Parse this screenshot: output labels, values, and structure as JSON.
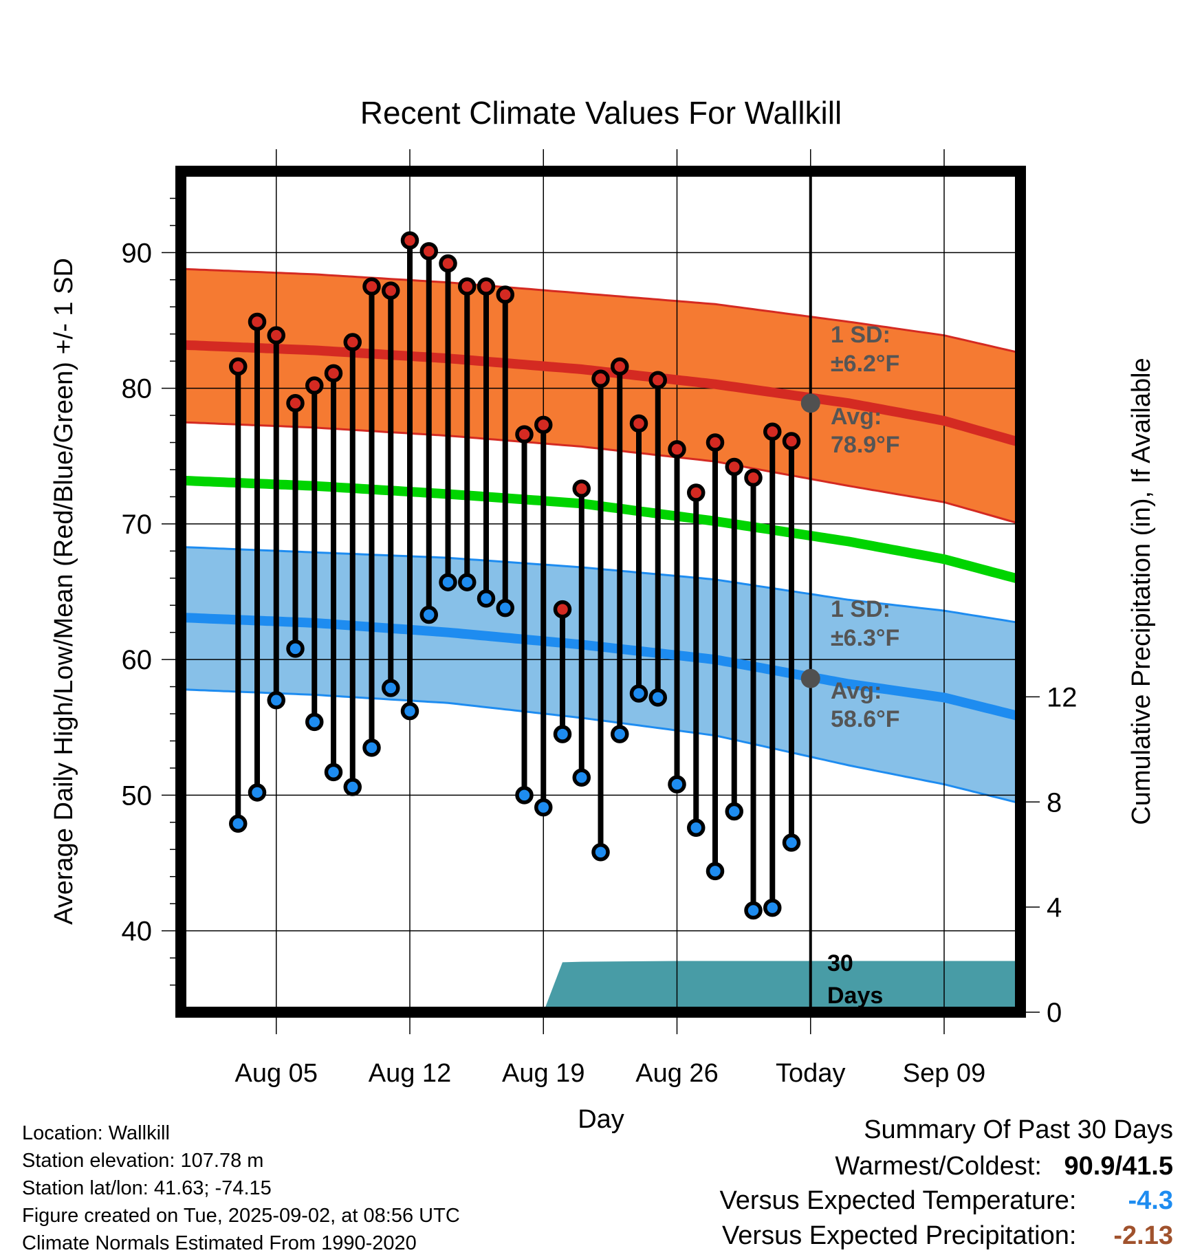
{
  "chart_data": {
    "type": "line",
    "title": "Recent Climate Values For Wallkill",
    "xlabel": "Day",
    "ylabel": "Average Daily High/Low/Mean (Red/Blue/Green) +/- 1 SD",
    "y2label": "Cumulative Precipitation (in), If Available",
    "ylim": [
      34,
      96
    ],
    "y2lim": [
      0,
      32
    ],
    "yticks": [
      40,
      50,
      60,
      70,
      80,
      90
    ],
    "y2ticks": [
      0,
      4,
      8,
      12
    ],
    "xlim": [
      "2025-07-31",
      "2025-09-13"
    ],
    "xticks": [
      "Aug 05",
      "Aug 12",
      "Aug 19",
      "Aug 26",
      "Today",
      "Sep 09"
    ],
    "today": "2025-09-02",
    "grid": true,
    "daily": {
      "dates": [
        "2025-08-03",
        "2025-08-04",
        "2025-08-05",
        "2025-08-06",
        "2025-08-07",
        "2025-08-08",
        "2025-08-09",
        "2025-08-10",
        "2025-08-11",
        "2025-08-12",
        "2025-08-13",
        "2025-08-14",
        "2025-08-15",
        "2025-08-16",
        "2025-08-17",
        "2025-08-18",
        "2025-08-19",
        "2025-08-20",
        "2025-08-21",
        "2025-08-22",
        "2025-08-23",
        "2025-08-24",
        "2025-08-25",
        "2025-08-26",
        "2025-08-27",
        "2025-08-28",
        "2025-08-29",
        "2025-08-30",
        "2025-08-31",
        "2025-09-01"
      ],
      "high": [
        81.6,
        84.9,
        83.9,
        78.9,
        80.2,
        81.1,
        83.4,
        87.5,
        87.2,
        90.9,
        90.1,
        89.2,
        87.5,
        87.5,
        86.9,
        76.6,
        77.3,
        63.7,
        72.6,
        80.7,
        81.6,
        77.4,
        80.6,
        75.5,
        72.3,
        76.0,
        74.2,
        73.4,
        76.8,
        76.1
      ],
      "low": [
        47.9,
        50.2,
        57.0,
        60.8,
        55.4,
        51.7,
        50.6,
        53.5,
        57.9,
        56.2,
        63.3,
        65.7,
        65.7,
        64.5,
        63.8,
        50.0,
        49.1,
        54.5,
        51.3,
        45.8,
        54.5,
        57.5,
        57.2,
        50.8,
        47.6,
        44.4,
        48.8,
        41.5,
        41.7,
        46.5
      ]
    },
    "normals": {
      "dates": [
        "2025-07-31",
        "2025-08-07",
        "2025-08-14",
        "2025-08-21",
        "2025-08-28",
        "2025-09-04",
        "2025-09-09",
        "2025-09-13"
      ],
      "high_avg": [
        83.2,
        82.8,
        82.2,
        81.4,
        80.3,
        78.9,
        77.6,
        76.0
      ],
      "high_upper": [
        88.8,
        88.4,
        87.8,
        87.0,
        86.2,
        84.9,
        83.9,
        82.6
      ],
      "high_lower": [
        77.5,
        77.1,
        76.5,
        75.7,
        74.6,
        72.8,
        71.6,
        70.0
      ],
      "mean_avg": [
        73.2,
        72.8,
        72.2,
        71.5,
        70.2,
        68.7,
        67.4,
        65.9
      ],
      "low_avg": [
        63.1,
        62.7,
        62.0,
        61.1,
        60.0,
        58.2,
        57.2,
        55.8
      ],
      "low_upper": [
        68.3,
        67.9,
        67.5,
        66.8,
        65.9,
        64.4,
        63.6,
        62.7
      ],
      "low_lower": [
        57.8,
        57.4,
        56.8,
        55.7,
        54.4,
        52.2,
        50.8,
        49.4
      ]
    },
    "precip": {
      "dates": [
        "2025-08-19",
        "2025-08-20",
        "2025-08-21",
        "2025-08-26",
        "2025-09-02",
        "2025-09-13"
      ],
      "cumulative": [
        0.0,
        1.9,
        1.92,
        1.95,
        1.95,
        1.95
      ]
    },
    "annotations": {
      "high_sd_label": "1 SD:",
      "high_sd_value": "±6.2°F",
      "high_avg_label": "Avg:",
      "high_avg_value": "78.9°F",
      "high_avg_today": 78.9,
      "low_sd_label": "1 SD:",
      "low_sd_value": "±6.3°F",
      "low_avg_label": "Avg:",
      "low_avg_value": "58.6°F",
      "low_avg_today": 58.6,
      "days_label_1": "30",
      "days_label_2": "Days"
    },
    "colors": {
      "high_band": "#f57a32",
      "high_line": "#d42a22",
      "mean_line": "#00d400",
      "low_band": "#87c0e8",
      "low_line": "#1e8cf0",
      "precip_fill": "#489ca6",
      "high_marker": "#d42a22",
      "low_marker": "#1e8cf0",
      "avg_marker": "#505050",
      "annotation_text": "#555555"
    }
  },
  "info": {
    "location": "Location: Wallkill",
    "elevation": "Station elevation: 107.78 m",
    "latlon": "Station lat/lon: 41.63; -74.15",
    "created": "Figure created on Tue, 2025-09-02, at 08:56 UTC",
    "normals": "Climate Normals Estimated From 1990-2020"
  },
  "summary": {
    "title": "Summary Of Past 30 Days",
    "warm_cold_label": "Warmest/Coldest:",
    "warm_cold_value": "90.9/41.5",
    "temp_label": "Versus Expected Temperature:",
    "temp_value": "-4.3",
    "temp_color": "#1e8cf0",
    "precip_label": "Versus Expected Precipitation:",
    "precip_value": "-2.13",
    "precip_color": "#a0522d"
  }
}
